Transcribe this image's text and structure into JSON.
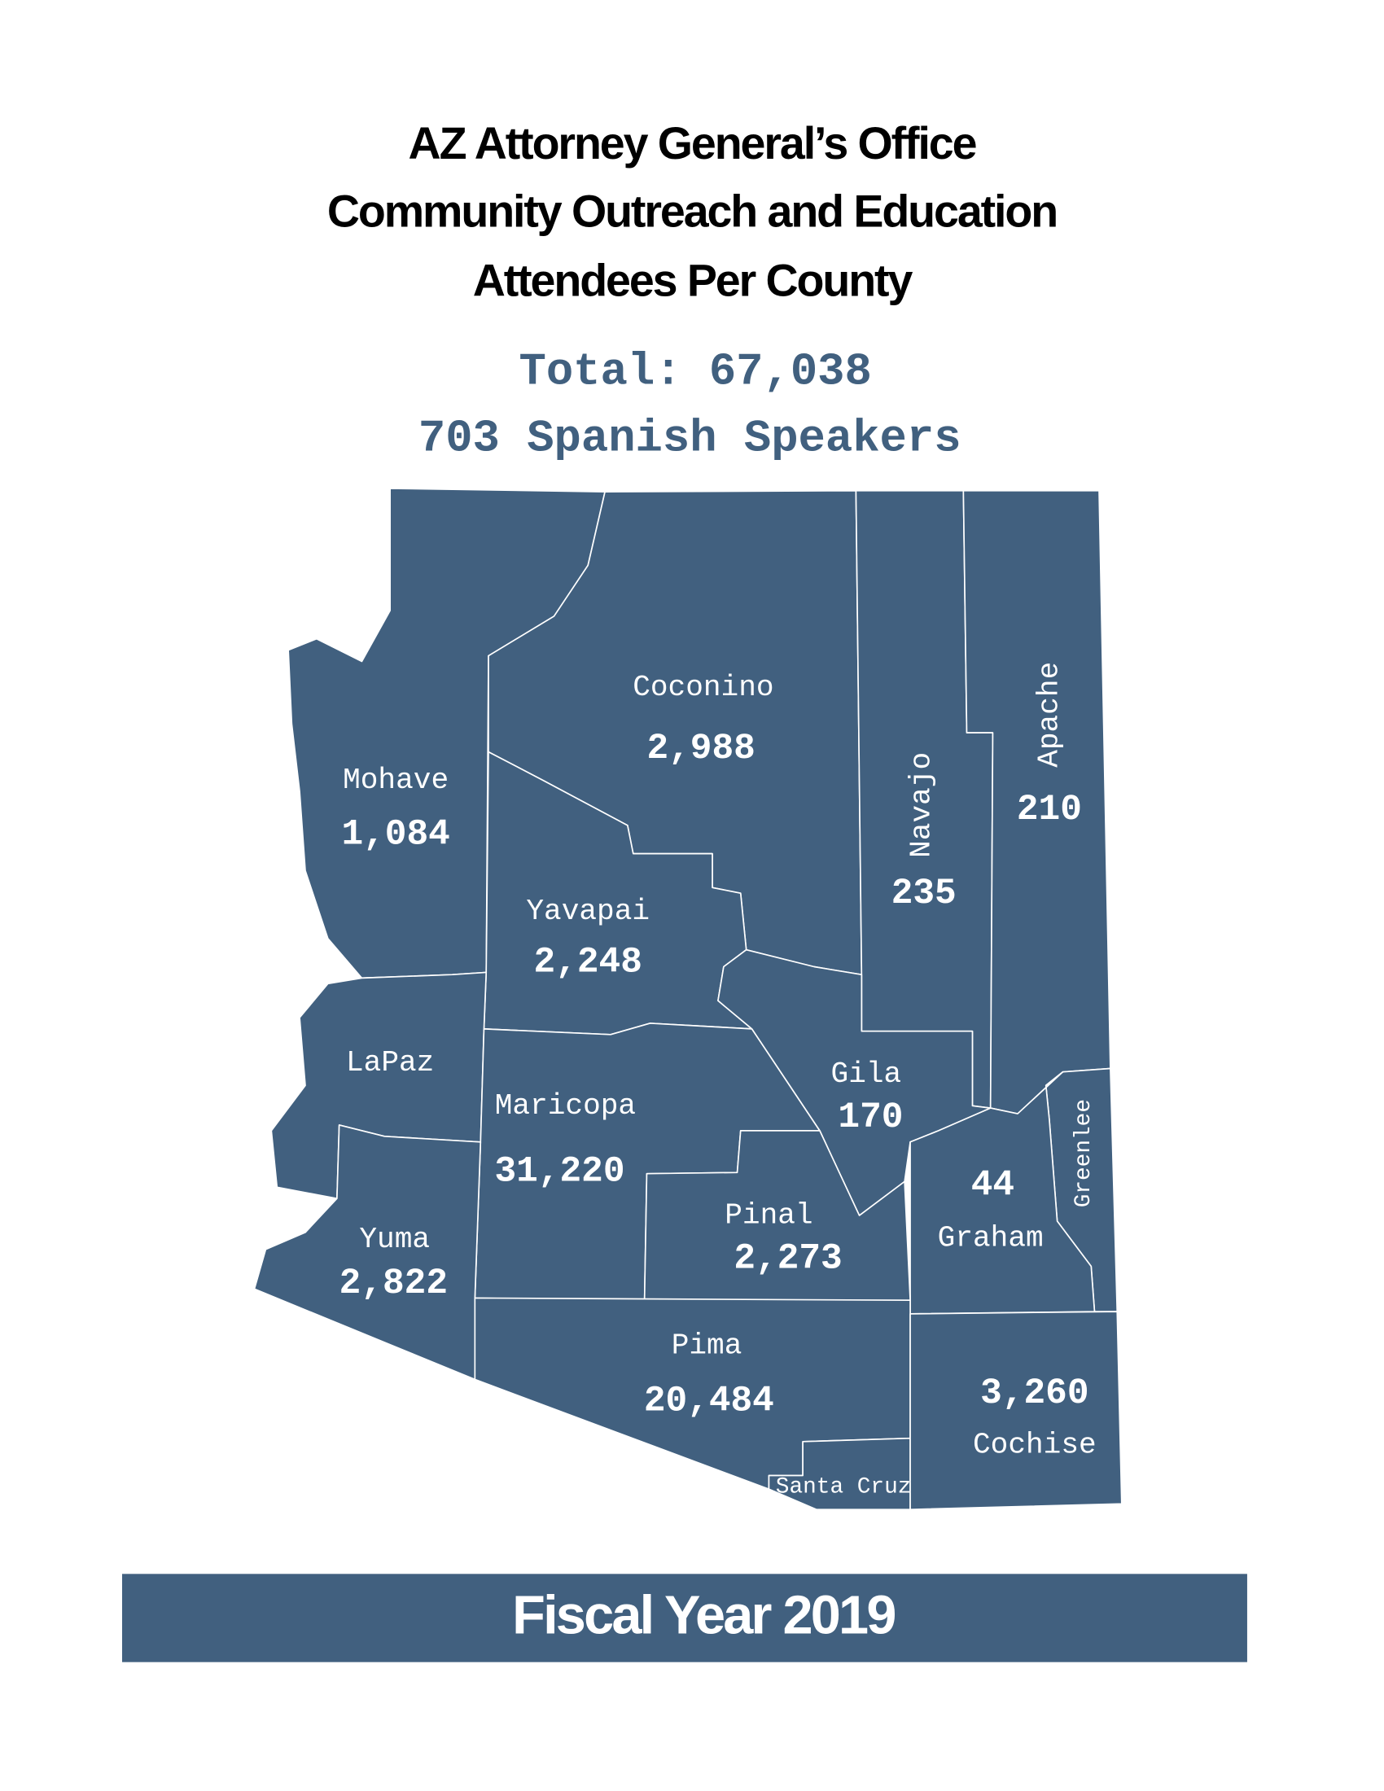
{
  "header": {
    "title_lines": [
      "AZ Attorney General’s Office",
      "Community Outreach and Education",
      "Attendees Per County"
    ],
    "total": "Total: 67,038",
    "spanish": "703 Spanish Speakers"
  },
  "counties": [
    {
      "name": "Mohave",
      "value": "1,084"
    },
    {
      "name": "Coconino",
      "value": "2,988"
    },
    {
      "name": "Navajo",
      "value": "235"
    },
    {
      "name": "Apache",
      "value": "210"
    },
    {
      "name": "Yavapai",
      "value": "2,248"
    },
    {
      "name": "LaPaz"
    },
    {
      "name": "Maricopa",
      "value": "31,220"
    },
    {
      "name": "Gila",
      "value": "170"
    },
    {
      "name": "Greenlee"
    },
    {
      "name": "Graham",
      "value": "44"
    },
    {
      "name": "Pinal",
      "value": "2,273"
    },
    {
      "name": "Yuma",
      "value": "2,822"
    },
    {
      "name": "Pima",
      "value": "20,484"
    },
    {
      "name": "Santa Cruz"
    },
    {
      "name": "Cochise",
      "value": "3,260"
    }
  ],
  "footer": "Fiscal Year 2019"
}
